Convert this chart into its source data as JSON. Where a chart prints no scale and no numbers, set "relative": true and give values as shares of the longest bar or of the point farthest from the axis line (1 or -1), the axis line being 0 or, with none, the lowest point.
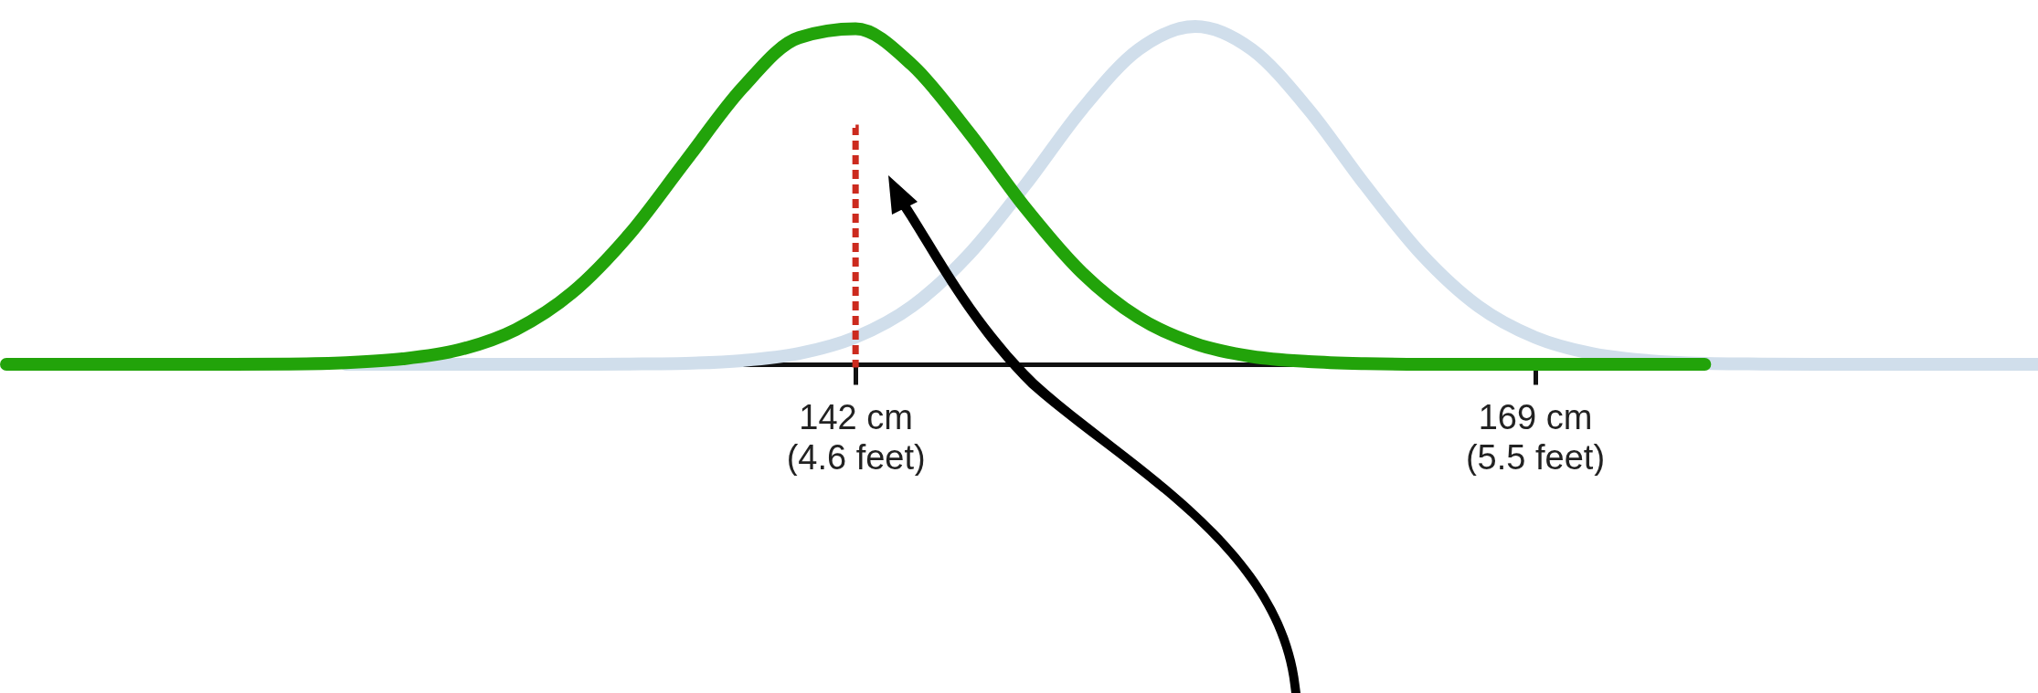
{
  "chart_data": {
    "type": "line",
    "relative": true,
    "grid": false,
    "categories": [
      null,
      null,
      null,
      null,
      null,
      null,
      null,
      null,
      null,
      null,
      null,
      null,
      null,
      null,
      null,
      "142 cm\n(4.6 feet)",
      null,
      null,
      null,
      null,
      null,
      null,
      null,
      null,
      null,
      null,
      null,
      "169 cm\n(5.5 feet)",
      null,
      null,
      null,
      null,
      null,
      null,
      null,
      null,
      null
    ],
    "series": [
      {
        "color": "#d0deeb",
        "values": [
          null,
          null,
          null,
          null,
          null,
          null,
          0,
          0,
          0,
          0,
          0,
          0.001,
          0.003,
          0.011,
          0.032,
          0.08,
          0.172,
          0.325,
          0.531,
          0.755,
          0.932,
          1,
          0.932,
          0.755,
          0.531,
          0.325,
          0.172,
          0.08,
          0.032,
          0.011,
          0.003,
          0.001,
          0,
          0,
          0,
          0,
          0
        ]
      },
      {
        "color": "#22a30a",
        "values": [
          0,
          0,
          0,
          0,
          0,
          0.001,
          0.005,
          0.016,
          0.043,
          0.103,
          0.213,
          0.384,
          0.602,
          0.818,
          0.967,
          0.993,
          0.886,
          0.687,
          0.463,
          0.271,
          0.138,
          0.061,
          0.023,
          0.008,
          0.002,
          0,
          0,
          0,
          0,
          0,
          0,
          null,
          null,
          null,
          null,
          null,
          null
        ]
      },
      {
        "type": "bar",
        "color": "#cc2a1e",
        "line_style": "dotted",
        "values": [
          null,
          null,
          null,
          null,
          null,
          null,
          null,
          null,
          null,
          null,
          null,
          null,
          null,
          null,
          null,
          0.7,
          null,
          null,
          null,
          null,
          null,
          null,
          null,
          null,
          null,
          null,
          null,
          null,
          null,
          null,
          null,
          null,
          null,
          null,
          null,
          null,
          null
        ]
      }
    ]
  }
}
